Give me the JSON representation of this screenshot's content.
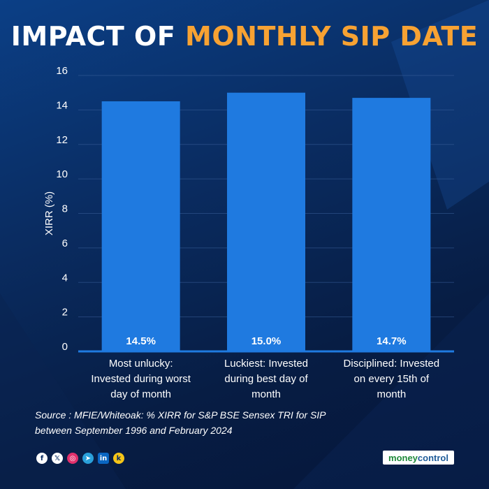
{
  "title": {
    "part1": "IMPACT OF",
    "part2": "MONTHLY SIP DATE"
  },
  "colors": {
    "bar": "#1f7ae0",
    "title_accent": "#f7a233",
    "grid": "#3a5f9a",
    "text": "#ffffff"
  },
  "chart_data": {
    "type": "bar",
    "title": "IMPACT OF MONTHLY SIP DATE",
    "xlabel": "",
    "ylabel": "XIRR (%)",
    "ylim": [
      0,
      16
    ],
    "yticks": [
      0,
      2,
      4,
      6,
      8,
      10,
      12,
      14,
      16
    ],
    "grid": true,
    "categories": [
      [
        "Most unlucky:",
        "Invested during worst",
        "day of month"
      ],
      [
        "Luckiest: Invested",
        "during best day of",
        "month"
      ],
      [
        "Disciplined: Invested",
        "on every 15th of",
        "month"
      ]
    ],
    "values": [
      14.5,
      15.0,
      14.7
    ],
    "data_labels": [
      "14.5%",
      "15.0%",
      "14.7%"
    ]
  },
  "source": "Source : MFIE/Whiteoak: % XIRR for S&P BSE Sensex TRI for SIP between September 1996 and February 2024",
  "social": [
    {
      "name": "facebook",
      "glyph": "f"
    },
    {
      "name": "x",
      "glyph": "𝕏"
    },
    {
      "name": "instagram",
      "glyph": "◎"
    },
    {
      "name": "telegram",
      "glyph": "➤"
    },
    {
      "name": "linkedin",
      "glyph": "in"
    },
    {
      "name": "koo",
      "glyph": "k"
    }
  ],
  "brand": {
    "part1": "money",
    "part2": "control"
  }
}
